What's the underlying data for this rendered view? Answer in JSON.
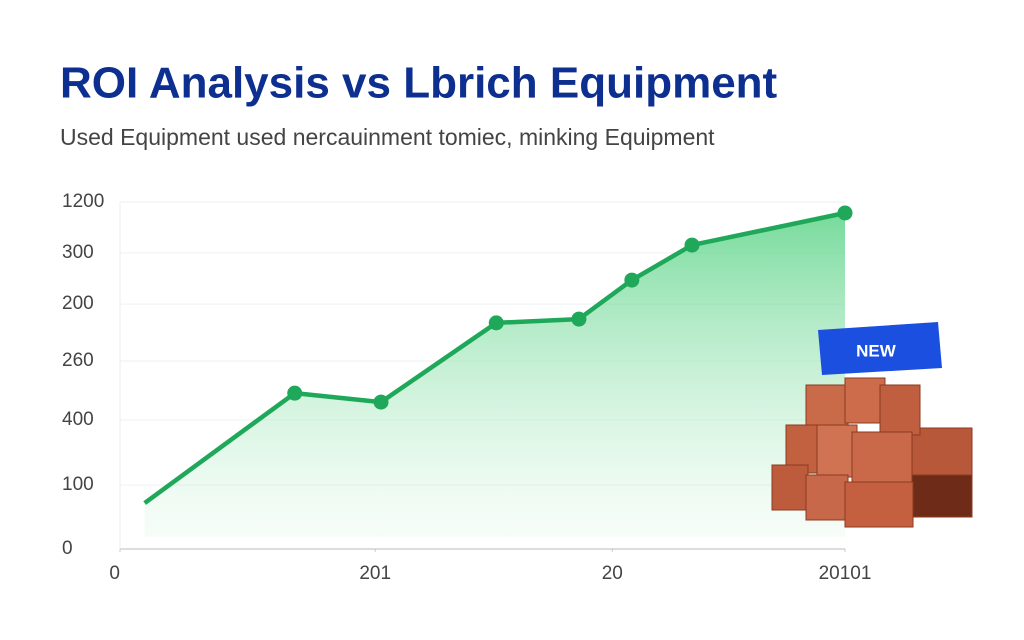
{
  "chart_data": {
    "type": "area-line",
    "title": "ROI Analysis vs Lbrich Equipment",
    "subtitle": "Used Equipment  used nercauinment tomiec, minking Equipment",
    "badge": "NEW",
    "x": [
      3.4,
      24.1,
      36,
      51.9,
      63.3,
      70.6,
      78.9,
      100
    ],
    "values": [
      159,
      539,
      508,
      782,
      795,
      930,
      1051,
      1162
    ],
    "color": "#1fa85a",
    "xlim": [
      0,
      100
    ],
    "xticks": [
      0,
      {
        "value": 35.2,
        "label": "201"
      },
      {
        "value": 67.9,
        "label": "20"
      },
      {
        "value": 100,
        "label": "20101"
      }
    ],
    "ylim": [
      0,
      1200
    ],
    "yticks": [
      0,
      {
        "value": 221,
        "label": "100"
      },
      {
        "value": 446,
        "label": "400"
      },
      {
        "value": 650,
        "label": "260"
      },
      {
        "value": 847,
        "label": "200"
      },
      {
        "value": 1024,
        "label": "300"
      },
      {
        "value": 1200,
        "label": "1200"
      }
    ],
    "grid": true
  }
}
